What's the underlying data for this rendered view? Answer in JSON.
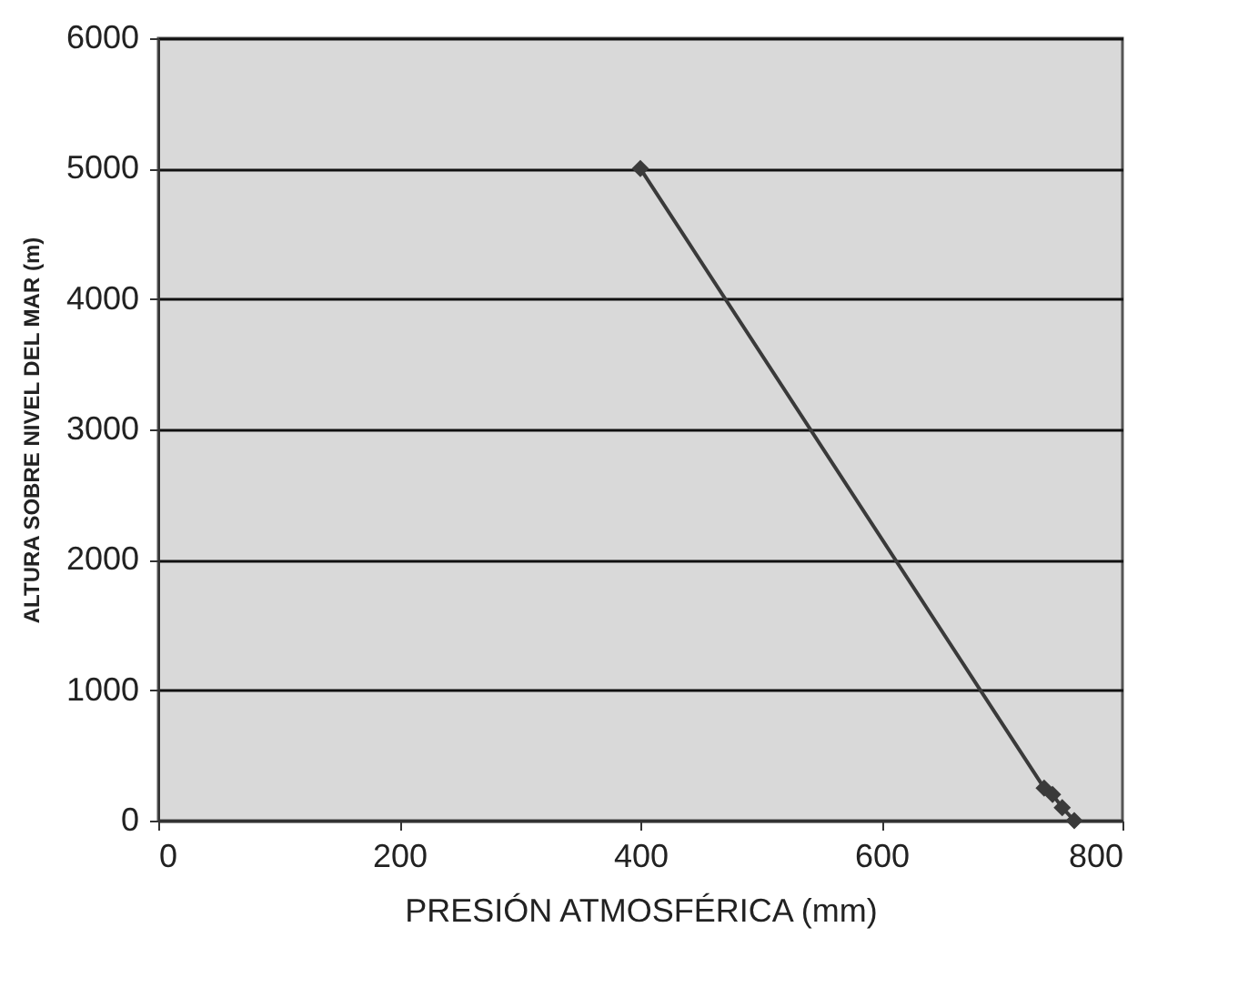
{
  "chart_data": {
    "type": "line",
    "xlabel": "PRESIÓN ATMOSFÉRICA (mm)",
    "ylabel": "ALTURA SOBRE NIVEL DEL MAR (m)",
    "x": [
      400,
      735,
      742,
      750,
      760
    ],
    "series": [
      {
        "color": "#3a3a3a",
        "values": [
          5000,
          250,
          200,
          100,
          0
        ]
      }
    ],
    "xlim": [
      0,
      800
    ],
    "xticks": [
      0,
      200,
      400,
      600,
      800
    ],
    "ylim": [
      0,
      6000
    ],
    "yticks": [
      0,
      1000,
      2000,
      3000,
      4000,
      5000,
      6000
    ],
    "grid": "y",
    "marker": "diamond",
    "line_style": "solid"
  }
}
